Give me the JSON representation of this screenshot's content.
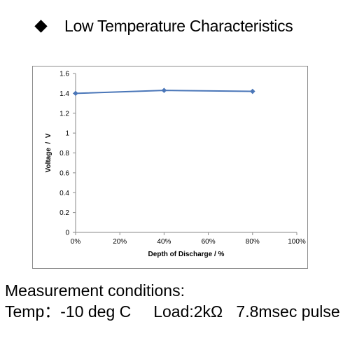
{
  "heading": {
    "icon": "diamond-bullet-icon",
    "text": "Low Temperature Characteristics"
  },
  "chart_data": {
    "type": "line",
    "title": "",
    "xlabel": "Depth of Discharge / %",
    "ylabel": "Voltage  /  V",
    "x_ticks": [
      "0%",
      "20%",
      "40%",
      "60%",
      "80%",
      "100%"
    ],
    "y_ticks": [
      "0",
      "0.2",
      "0.4",
      "0.6",
      "0.8",
      "1",
      "1.2",
      "1.4",
      "1.6"
    ],
    "xlim": [
      0,
      100
    ],
    "ylim": [
      0,
      1.6
    ],
    "grid": false,
    "legend": "none",
    "series": [
      {
        "color": "#4a76b8",
        "marker": "diamond",
        "x": [
          0,
          40,
          80
        ],
        "y": [
          1.4,
          1.43,
          1.42
        ]
      }
    ]
  },
  "conditions": {
    "line1": "Measurement conditions:",
    "line2": "Temp：-10 deg C     Load:2kΩ   7.8msec pulse"
  }
}
